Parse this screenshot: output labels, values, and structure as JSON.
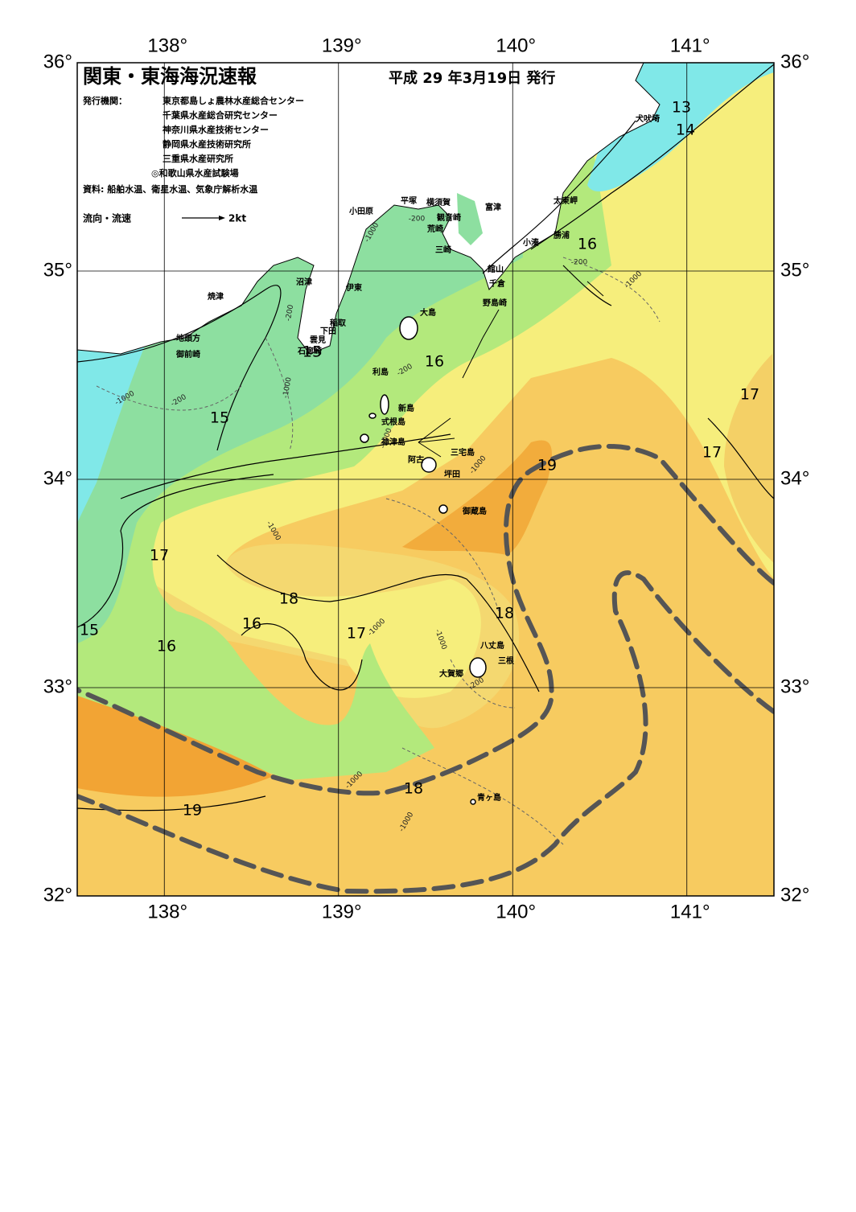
{
  "header": {
    "title": "関東・東海海況速報",
    "date": "平成 29 年3月19日 発行",
    "issuers_label": "発行機関：",
    "issuers": [
      "東京都島しょ農林水産総合センター",
      "千葉県水産総合研究センター",
      "神奈川県水産技術センター",
      "静岡県水産技術研究所",
      "三重県水産研究所",
      "◎和歌山県水産試験場"
    ],
    "source": "資料: 船舶水温、衛星水温、気象庁解析水温"
  },
  "legend": {
    "label": "流向・流速",
    "scale": "2kt"
  },
  "map": {
    "lon_ticks": [
      {
        "value": 138,
        "label": "138°"
      },
      {
        "value": 139,
        "label": "139°"
      },
      {
        "value": 140,
        "label": "140°"
      },
      {
        "value": 141,
        "label": "141°"
      }
    ],
    "lat_ticks": [
      {
        "value": 36,
        "label": "36°"
      },
      {
        "value": 35,
        "label": "35°"
      },
      {
        "value": 34,
        "label": "34°"
      },
      {
        "value": 33,
        "label": "33°"
      },
      {
        "value": 32,
        "label": "32°"
      }
    ]
  },
  "places": [
    "犬吠埼",
    "太東岬",
    "勝浦",
    "小湊",
    "館山",
    "千倉",
    "野島崎",
    "富津",
    "横須賀",
    "観音崎",
    "荒崎",
    "三崎",
    "平塚",
    "小田原",
    "沼津",
    "伊東",
    "稲取",
    "下田",
    "雲見",
    "石廊崎",
    "焼津",
    "地頭方",
    "御前崎",
    "大島",
    "利島",
    "新島",
    "式根島",
    "神津島",
    "三宅島",
    "阿古",
    "坪田",
    "御蔵島",
    "八丈島",
    "三根",
    "大賀郷",
    "青ヶ島"
  ],
  "isotherm_labels": [
    13,
    14,
    16,
    16,
    15,
    15,
    17,
    17,
    19,
    17,
    18,
    18,
    15,
    16,
    16,
    17,
    18,
    19
  ],
  "depth_labels": [
    "-1000",
    "-200",
    "-200",
    "-1000",
    "-200",
    "-1000",
    "-200",
    "-1000",
    "-200",
    "-1000",
    "-1000",
    "-1000",
    "-1000",
    "-1000",
    "-200",
    "-1000",
    "-1000"
  ]
}
